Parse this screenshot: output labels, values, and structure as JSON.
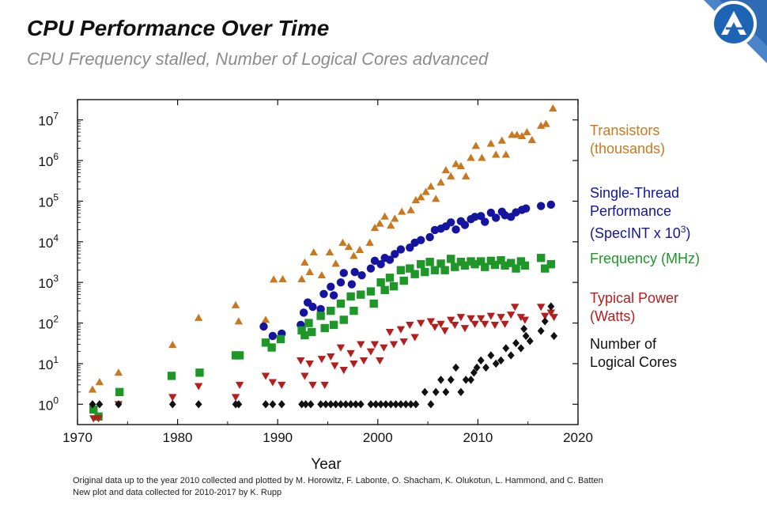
{
  "header": {
    "title": "CPU Performance Over Time",
    "subtitle": "CPU Frequency stalled, Number of Logical Cores advanced"
  },
  "footnote": {
    "line1": "Original data up to the year 2010 collected and plotted by M. Horowitz, F. Labonte, O. Shacham, K. Olukotun, L. Hammond, and C. Batten",
    "line2": "New plot and data collected for 2010-2017 by K. Rupp"
  },
  "colors": {
    "transistors": "#c8781e",
    "single_thread": "#1414a0",
    "frequency": "#1e9628",
    "power": "#b41e1e",
    "cores": "#111111",
    "logo": "#1e64b4"
  },
  "legend": {
    "transistors": {
      "line1": "Transistors",
      "line2": "(thousands)"
    },
    "single_thread": {
      "line1": "Single-Thread",
      "line2": "Performance",
      "line3_prefix": "(SpecINT x 10",
      "line3_sup": "3",
      "line3_suffix": ")"
    },
    "frequency": {
      "line1": "Frequency (MHz)"
    },
    "power": {
      "line1": "Typical Power",
      "line2": "(Watts)"
    },
    "cores": {
      "line1": "Number of",
      "line2": "Logical Cores"
    }
  },
  "chart_data": {
    "type": "scatter",
    "title": "CPU Performance Over Time",
    "xlabel": "Year",
    "ylabel": "",
    "yscale": "log",
    "xlim": [
      1970,
      2020
    ],
    "ylim_exp": [
      -0.5,
      7.5
    ],
    "x_ticks": [
      1970,
      1980,
      1990,
      2000,
      2010,
      2020
    ],
    "y_ticks": [
      {
        "base": "10",
        "exp": "0",
        "value": 1
      },
      {
        "base": "10",
        "exp": "1",
        "value": 10
      },
      {
        "base": "10",
        "exp": "2",
        "value": 100
      },
      {
        "base": "10",
        "exp": "3",
        "value": 1000
      },
      {
        "base": "10",
        "exp": "4",
        "value": 10000
      },
      {
        "base": "10",
        "exp": "5",
        "value": 100000
      },
      {
        "base": "10",
        "exp": "6",
        "value": 1000000
      },
      {
        "base": "10",
        "exp": "7",
        "value": 10000000
      }
    ],
    "series": [
      {
        "name": "Transistors (thousands)",
        "key": "transistors",
        "marker": "triangle",
        "points": [
          [
            1971.5,
            2.3
          ],
          [
            1972.2,
            3.5
          ],
          [
            1974.1,
            6
          ],
          [
            1979.5,
            29
          ],
          [
            1982.1,
            134
          ],
          [
            1985.8,
            275
          ],
          [
            1986.1,
            110
          ],
          [
            1988.8,
            120
          ],
          [
            1989.6,
            1180
          ],
          [
            1990.5,
            1200
          ],
          [
            1992.4,
            1200
          ],
          [
            1992.7,
            3100
          ],
          [
            1993.2,
            1800
          ],
          [
            1993.6,
            5500
          ],
          [
            1994.4,
            1500
          ],
          [
            1995.2,
            5500
          ],
          [
            1995.8,
            2900
          ],
          [
            1996.5,
            9500
          ],
          [
            1997.1,
            7500
          ],
          [
            1997.6,
            4500
          ],
          [
            1998.2,
            6300
          ],
          [
            1999.2,
            9500
          ],
          [
            1999.7,
            22000
          ],
          [
            2000.2,
            28000
          ],
          [
            2000.7,
            42000
          ],
          [
            2001.3,
            25000
          ],
          [
            2001.7,
            37000
          ],
          [
            2002.4,
            55000
          ],
          [
            2003.3,
            60000
          ],
          [
            2003.8,
            106000
          ],
          [
            2004.3,
            125000
          ],
          [
            2004.8,
            169000
          ],
          [
            2005.3,
            230000
          ],
          [
            2005.8,
            114000
          ],
          [
            2006.3,
            290000
          ],
          [
            2006.8,
            580000
          ],
          [
            2007.3,
            410000
          ],
          [
            2007.8,
            820000
          ],
          [
            2008.3,
            730000
          ],
          [
            2008.8,
            410000
          ],
          [
            2009.3,
            1170000
          ],
          [
            2009.8,
            2300000
          ],
          [
            2010.4,
            1170000
          ],
          [
            2011.3,
            2600000
          ],
          [
            2011.8,
            1400000
          ],
          [
            2012.4,
            3100000
          ],
          [
            2012.8,
            1400000
          ],
          [
            2013.4,
            4300000
          ],
          [
            2013.9,
            4300000
          ],
          [
            2014.4,
            4000000
          ],
          [
            2014.9,
            5000000
          ],
          [
            2015.4,
            3200000
          ],
          [
            2016.3,
            7200000
          ],
          [
            2016.8,
            8000000
          ],
          [
            2017.5,
            19200000
          ]
        ]
      },
      {
        "name": "Single-Thread Performance (SpecINT x 10^3)",
        "key": "single_thread",
        "marker": "circle",
        "points": [
          [
            1988.6,
            82
          ],
          [
            1989.5,
            48
          ],
          [
            1990.4,
            55
          ],
          [
            1992.3,
            90
          ],
          [
            1992.6,
            180
          ],
          [
            1993.0,
            320
          ],
          [
            1993.5,
            250
          ],
          [
            1994.3,
            220
          ],
          [
            1994.6,
            520
          ],
          [
            1995.3,
            780
          ],
          [
            1995.6,
            480
          ],
          [
            1996.3,
            1000
          ],
          [
            1996.6,
            1700
          ],
          [
            1997.4,
            900
          ],
          [
            1997.7,
            1800
          ],
          [
            1998.4,
            1500
          ],
          [
            1999.3,
            2200
          ],
          [
            1999.7,
            3400
          ],
          [
            2000.3,
            2800
          ],
          [
            2000.7,
            4000
          ],
          [
            2001.2,
            3600
          ],
          [
            2001.7,
            5000
          ],
          [
            2002.3,
            6500
          ],
          [
            2003.2,
            7200
          ],
          [
            2003.7,
            9500
          ],
          [
            2004.3,
            11000
          ],
          [
            2005.2,
            13000
          ],
          [
            2005.7,
            19500
          ],
          [
            2006.3,
            21000
          ],
          [
            2006.8,
            24000
          ],
          [
            2007.3,
            30000
          ],
          [
            2007.8,
            20000
          ],
          [
            2008.3,
            32000
          ],
          [
            2008.7,
            26000
          ],
          [
            2009.3,
            36000
          ],
          [
            2009.7,
            41000
          ],
          [
            2010.3,
            43000
          ],
          [
            2010.7,
            31000
          ],
          [
            2011.3,
            52000
          ],
          [
            2011.8,
            39000
          ],
          [
            2012.4,
            55000
          ],
          [
            2012.7,
            45000
          ],
          [
            2013.3,
            41000
          ],
          [
            2013.8,
            53000
          ],
          [
            2014.4,
            61000
          ],
          [
            2014.8,
            66000
          ],
          [
            2016.3,
            76000
          ],
          [
            2017.3,
            82000
          ]
        ]
      },
      {
        "name": "Frequency (MHz)",
        "key": "frequency",
        "marker": "square",
        "points": [
          [
            1971.6,
            0.74
          ],
          [
            1972.1,
            0.5
          ],
          [
            1974.2,
            2
          ],
          [
            1979.4,
            5
          ],
          [
            1982.2,
            6
          ],
          [
            1985.8,
            16
          ],
          [
            1986.2,
            16
          ],
          [
            1988.8,
            33
          ],
          [
            1989.4,
            25
          ],
          [
            1990.3,
            40
          ],
          [
            1992.4,
            66
          ],
          [
            1992.7,
            50
          ],
          [
            1993.1,
            100
          ],
          [
            1993.4,
            60
          ],
          [
            1994.3,
            150
          ],
          [
            1994.7,
            75
          ],
          [
            1995.3,
            200
          ],
          [
            1995.6,
            90
          ],
          [
            1996.3,
            300
          ],
          [
            1996.6,
            120
          ],
          [
            1997.3,
            450
          ],
          [
            1997.6,
            200
          ],
          [
            1998.3,
            500
          ],
          [
            1999.3,
            600
          ],
          [
            1999.6,
            300
          ],
          [
            2000.3,
            1000
          ],
          [
            2000.7,
            650
          ],
          [
            2001.2,
            1300
          ],
          [
            2001.6,
            800
          ],
          [
            2002.3,
            2000
          ],
          [
            2002.6,
            1100
          ],
          [
            2003.2,
            2200
          ],
          [
            2003.7,
            1600
          ],
          [
            2004.3,
            2800
          ],
          [
            2004.7,
            1800
          ],
          [
            2005.2,
            3200
          ],
          [
            2005.7,
            2000
          ],
          [
            2006.3,
            2900
          ],
          [
            2006.7,
            2000
          ],
          [
            2007.3,
            3800
          ],
          [
            2007.7,
            2400
          ],
          [
            2008.3,
            3200
          ],
          [
            2008.7,
            2600
          ],
          [
            2009.3,
            3300
          ],
          [
            2009.7,
            2800
          ],
          [
            2010.3,
            3300
          ],
          [
            2010.7,
            2400
          ],
          [
            2011.3,
            3400
          ],
          [
            2011.7,
            2700
          ],
          [
            2012.3,
            3500
          ],
          [
            2012.7,
            2600
          ],
          [
            2013.3,
            3000
          ],
          [
            2013.8,
            2200
          ],
          [
            2014.3,
            3300
          ],
          [
            2014.7,
            2600
          ],
          [
            2016.3,
            4000
          ],
          [
            2016.7,
            2200
          ],
          [
            2017.3,
            2800
          ]
        ]
      },
      {
        "name": "Typical Power (Watts)",
        "key": "power",
        "marker": "triangle-down",
        "points": [
          [
            1971.6,
            0.45
          ],
          [
            1972.1,
            0.45
          ],
          [
            1974.1,
            1
          ],
          [
            1979.5,
            1.5
          ],
          [
            1982.1,
            2.8
          ],
          [
            1985.8,
            1.5
          ],
          [
            1986.2,
            3
          ],
          [
            1988.8,
            5
          ],
          [
            1989.5,
            3.5
          ],
          [
            1990.4,
            3
          ],
          [
            1992.3,
            12
          ],
          [
            1992.7,
            5
          ],
          [
            1993.2,
            10
          ],
          [
            1993.5,
            3
          ],
          [
            1994.4,
            13
          ],
          [
            1994.7,
            3
          ],
          [
            1995.3,
            15
          ],
          [
            1995.7,
            9
          ],
          [
            1996.3,
            25
          ],
          [
            1996.6,
            7
          ],
          [
            1997.3,
            18
          ],
          [
            1997.6,
            10
          ],
          [
            1998.3,
            30
          ],
          [
            1998.6,
            12
          ],
          [
            1999.3,
            20
          ],
          [
            1999.7,
            30
          ],
          [
            2000.2,
            12
          ],
          [
            2000.6,
            25
          ],
          [
            2001.2,
            60
          ],
          [
            2001.6,
            30
          ],
          [
            2002.3,
            70
          ],
          [
            2002.6,
            35
          ],
          [
            2003.2,
            90
          ],
          [
            2003.7,
            45
          ],
          [
            2004.3,
            100
          ],
          [
            2005.3,
            110
          ],
          [
            2005.7,
            80
          ],
          [
            2006.3,
            95
          ],
          [
            2006.7,
            65
          ],
          [
            2007.3,
            120
          ],
          [
            2007.7,
            90
          ],
          [
            2008.3,
            140
          ],
          [
            2008.7,
            75
          ],
          [
            2009.3,
            130
          ],
          [
            2009.7,
            95
          ],
          [
            2010.3,
            130
          ],
          [
            2010.7,
            95
          ],
          [
            2011.3,
            150
          ],
          [
            2011.7,
            90
          ],
          [
            2012.3,
            140
          ],
          [
            2012.7,
            95
          ],
          [
            2013.3,
            160
          ],
          [
            2013.7,
            250
          ],
          [
            2014.3,
            140
          ],
          [
            2014.7,
            120
          ],
          [
            2016.3,
            250
          ],
          [
            2016.7,
            150
          ],
          [
            2017.3,
            180
          ],
          [
            2017.6,
            140
          ]
        ]
      },
      {
        "name": "Number of Logical Cores",
        "key": "cores",
        "marker": "diamond",
        "points": [
          [
            1971.5,
            1
          ],
          [
            1972.2,
            1
          ],
          [
            1974.1,
            1
          ],
          [
            1979.5,
            1
          ],
          [
            1982.1,
            1
          ],
          [
            1985.8,
            1
          ],
          [
            1986.1,
            1
          ],
          [
            1988.8,
            1
          ],
          [
            1989.5,
            1
          ],
          [
            1990.4,
            1
          ],
          [
            1992.4,
            1
          ],
          [
            1992.8,
            1
          ],
          [
            1993.3,
            1
          ],
          [
            1994.3,
            1
          ],
          [
            1994.8,
            1
          ],
          [
            1995.3,
            1
          ],
          [
            1995.8,
            1
          ],
          [
            1996.3,
            1
          ],
          [
            1996.8,
            1
          ],
          [
            1997.3,
            1
          ],
          [
            1997.8,
            1
          ],
          [
            1998.3,
            1
          ],
          [
            1999.3,
            1
          ],
          [
            1999.8,
            1
          ],
          [
            2000.3,
            1
          ],
          [
            2000.8,
            1
          ],
          [
            2001.3,
            1
          ],
          [
            2001.8,
            1
          ],
          [
            2002.3,
            1
          ],
          [
            2002.8,
            1
          ],
          [
            2003.3,
            1
          ],
          [
            2003.8,
            1
          ],
          [
            2004.7,
            2
          ],
          [
            2005.3,
            1
          ],
          [
            2005.8,
            2
          ],
          [
            2006.3,
            4
          ],
          [
            2006.8,
            2
          ],
          [
            2007.3,
            4
          ],
          [
            2007.8,
            8
          ],
          [
            2008.3,
            2
          ],
          [
            2008.8,
            4
          ],
          [
            2009.3,
            4
          ],
          [
            2009.6,
            6
          ],
          [
            2009.9,
            8
          ],
          [
            2010.3,
            12
          ],
          [
            2010.8,
            8
          ],
          [
            2011.3,
            16
          ],
          [
            2011.8,
            10
          ],
          [
            2012.3,
            12
          ],
          [
            2012.8,
            24
          ],
          [
            2013.3,
            16
          ],
          [
            2013.8,
            32
          ],
          [
            2014.3,
            24
          ],
          [
            2014.8,
            48
          ],
          [
            2015.2,
            36
          ],
          [
            2016.3,
            64
          ],
          [
            2016.7,
            110
          ],
          [
            2017.3,
            256
          ],
          [
            2017.6,
            48
          ],
          [
            2014.6,
            72
          ]
        ]
      }
    ]
  }
}
